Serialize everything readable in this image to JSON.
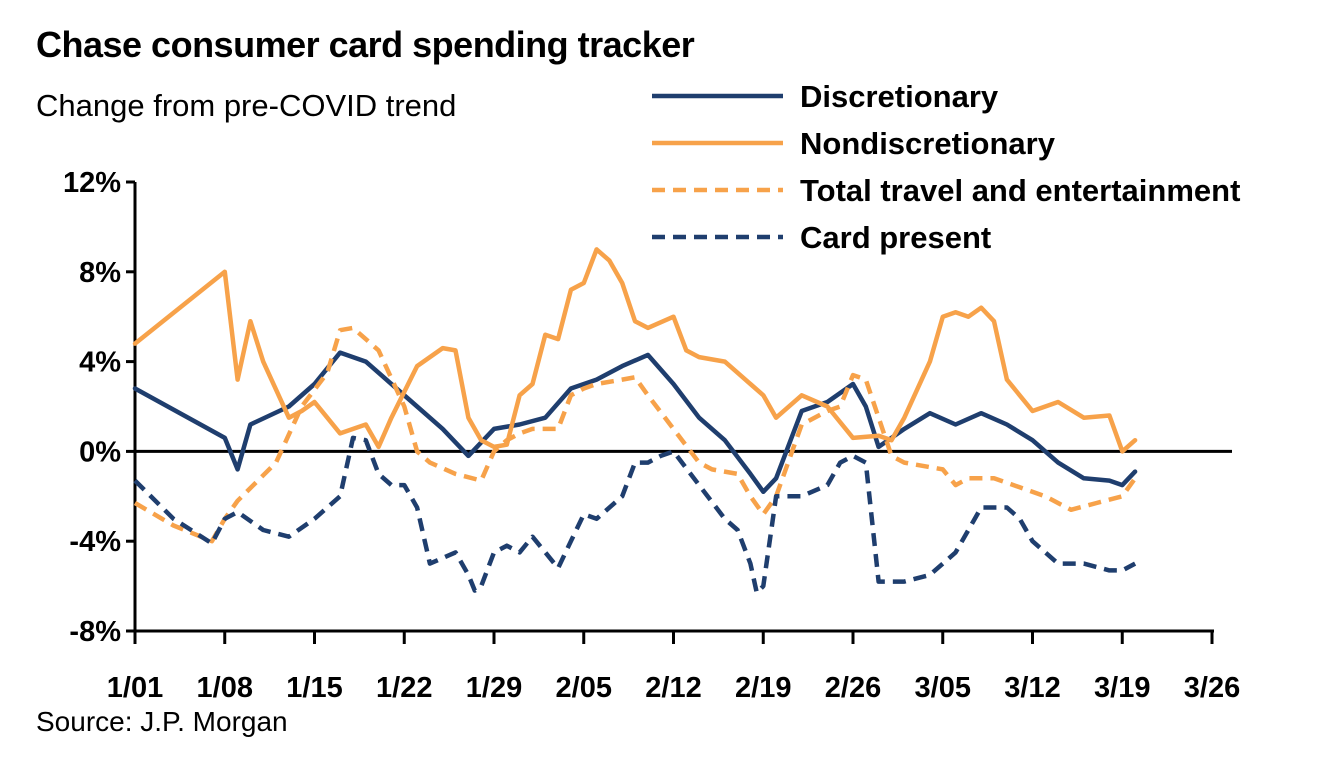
{
  "chart_data": {
    "type": "line",
    "title": "Chase consumer card spending tracker",
    "subtitle": "Change from pre-COVID trend",
    "source": "Source: J.P. Morgan",
    "ylim": [
      -8,
      12
    ],
    "yticks": [
      -8,
      -4,
      0,
      4,
      8,
      12
    ],
    "ytick_labels": [
      "-8%",
      "-4%",
      "0%",
      "4%",
      "8%",
      "12%"
    ],
    "xlim": [
      0,
      84
    ],
    "xticks": [
      0,
      7,
      14,
      21,
      28,
      35,
      42,
      49,
      56,
      63,
      70,
      77,
      84
    ],
    "xtick_labels": [
      "1/01",
      "1/08",
      "1/15",
      "1/22",
      "1/29",
      "2/05",
      "2/12",
      "2/19",
      "2/26",
      "3/05",
      "3/12",
      "3/19",
      "3/26"
    ],
    "legend_position": "top-right",
    "series": [
      {
        "name": "Discretionary",
        "color": "#1f3e6e",
        "dash": "solid",
        "x": [
          0,
          7,
          8,
          9,
          12,
          14,
          16,
          18,
          20,
          22,
          24,
          26,
          28,
          30,
          32,
          34,
          36,
          38,
          40,
          42,
          44,
          46,
          48,
          49,
          50,
          52,
          54,
          56,
          57,
          58,
          60,
          62,
          64,
          66,
          68,
          70,
          72,
          74,
          76,
          77,
          78
        ],
        "y": [
          2.8,
          0.6,
          -0.8,
          1.2,
          2.0,
          3.0,
          4.4,
          4.0,
          3.0,
          2.0,
          1.0,
          -0.2,
          1.0,
          1.2,
          1.5,
          2.8,
          3.2,
          3.8,
          4.3,
          3.0,
          1.5,
          0.5,
          -1.0,
          -1.8,
          -1.2,
          1.8,
          2.2,
          3.0,
          2.0,
          0.2,
          1.0,
          1.7,
          1.2,
          1.7,
          1.2,
          0.5,
          -0.5,
          -1.2,
          -1.3,
          -1.5,
          -0.9
        ]
      },
      {
        "name": "Nondiscretionary",
        "color": "#f7a24a",
        "dash": "solid",
        "x": [
          0,
          7,
          8,
          9,
          10,
          12,
          13,
          14,
          15,
          16,
          18,
          19,
          20,
          22,
          24,
          25,
          26,
          27,
          28,
          29,
          30,
          31,
          32,
          33,
          34,
          35,
          36,
          37,
          38,
          39,
          40,
          42,
          43,
          44,
          46,
          48,
          49,
          50,
          52,
          54,
          56,
          58,
          59,
          60,
          62,
          63,
          64,
          65,
          66,
          67,
          68,
          70,
          72,
          74,
          76,
          77,
          78
        ],
        "y": [
          4.8,
          8.0,
          3.2,
          5.8,
          4.0,
          1.5,
          1.8,
          2.2,
          1.5,
          0.8,
          1.2,
          0.2,
          1.5,
          3.8,
          4.6,
          4.5,
          1.5,
          0.5,
          0.2,
          0.3,
          2.5,
          3.0,
          5.2,
          5.0,
          7.2,
          7.5,
          9.0,
          8.5,
          7.5,
          5.8,
          5.5,
          6.0,
          4.5,
          4.2,
          4.0,
          3.0,
          2.5,
          1.5,
          2.5,
          2.0,
          0.6,
          0.7,
          0.5,
          1.5,
          4.0,
          6.0,
          6.2,
          6.0,
          6.4,
          5.8,
          3.2,
          1.8,
          2.2,
          1.5,
          1.6,
          0.0,
          0.5
        ]
      },
      {
        "name": "Total travel and entertainment",
        "color": "#f7a24a",
        "dash": "dashed",
        "x": [
          0,
          3,
          6,
          7,
          8,
          11,
          13,
          15,
          16,
          17,
          19,
          21,
          22,
          23,
          25,
          27,
          28,
          29,
          30,
          31,
          33,
          34,
          35,
          36,
          38,
          39,
          40,
          42,
          44,
          45,
          47,
          48,
          49,
          50,
          52,
          54,
          55,
          56,
          57,
          59,
          60,
          63,
          64,
          65,
          67,
          69,
          71,
          73,
          75,
          77,
          78
        ],
        "y": [
          -2.3,
          -3.3,
          -4.0,
          -3.0,
          -2.2,
          -0.5,
          2.0,
          3.5,
          5.4,
          5.5,
          4.5,
          2.0,
          0.0,
          -0.5,
          -1.0,
          -1.3,
          0.0,
          0.5,
          0.8,
          1.0,
          1.0,
          2.5,
          2.8,
          3.0,
          3.2,
          3.3,
          2.5,
          1.0,
          -0.5,
          -0.8,
          -1.0,
          -2.0,
          -2.8,
          -2.0,
          1.2,
          1.8,
          2.0,
          3.4,
          3.2,
          -0.2,
          -0.5,
          -0.8,
          -1.5,
          -1.2,
          -1.2,
          -1.6,
          -2.0,
          -2.6,
          -2.3,
          -2.0,
          -1.2
        ]
      },
      {
        "name": "Card present",
        "color": "#1f3e6e",
        "dash": "dashed",
        "x": [
          0,
          3,
          6,
          7,
          8,
          10,
          12,
          14,
          15,
          16,
          17,
          18,
          19,
          20,
          21,
          22,
          23,
          25,
          26,
          26.5,
          27,
          28,
          29,
          30,
          31,
          32,
          33,
          34,
          35,
          36,
          38,
          39,
          40,
          41,
          42,
          44,
          46,
          47,
          48,
          48.5,
          49,
          50,
          52,
          54,
          55,
          56,
          57,
          58,
          60,
          62,
          64,
          65,
          66,
          67,
          68,
          69,
          70,
          72,
          74,
          76,
          77,
          78
        ],
        "y": [
          -1.3,
          -3.0,
          -4.1,
          -3.0,
          -2.7,
          -3.5,
          -3.8,
          -3.0,
          -2.5,
          -2.0,
          0.6,
          0.5,
          -1.0,
          -1.5,
          -1.5,
          -2.5,
          -5.0,
          -4.5,
          -5.5,
          -6.2,
          -6.0,
          -4.5,
          -4.2,
          -4.5,
          -3.8,
          -4.5,
          -5.2,
          -4.0,
          -2.8,
          -3.0,
          -2.0,
          -0.5,
          -0.5,
          -0.2,
          0.0,
          -1.5,
          -3.0,
          -3.5,
          -5.0,
          -6.3,
          -6.0,
          -2.0,
          -2.0,
          -1.5,
          -0.5,
          -0.2,
          -0.5,
          -5.8,
          -5.8,
          -5.5,
          -4.5,
          -3.5,
          -2.5,
          -2.5,
          -2.5,
          -3.0,
          -4.0,
          -5.0,
          -5.0,
          -5.3,
          -5.3,
          -5.0
        ]
      }
    ]
  }
}
